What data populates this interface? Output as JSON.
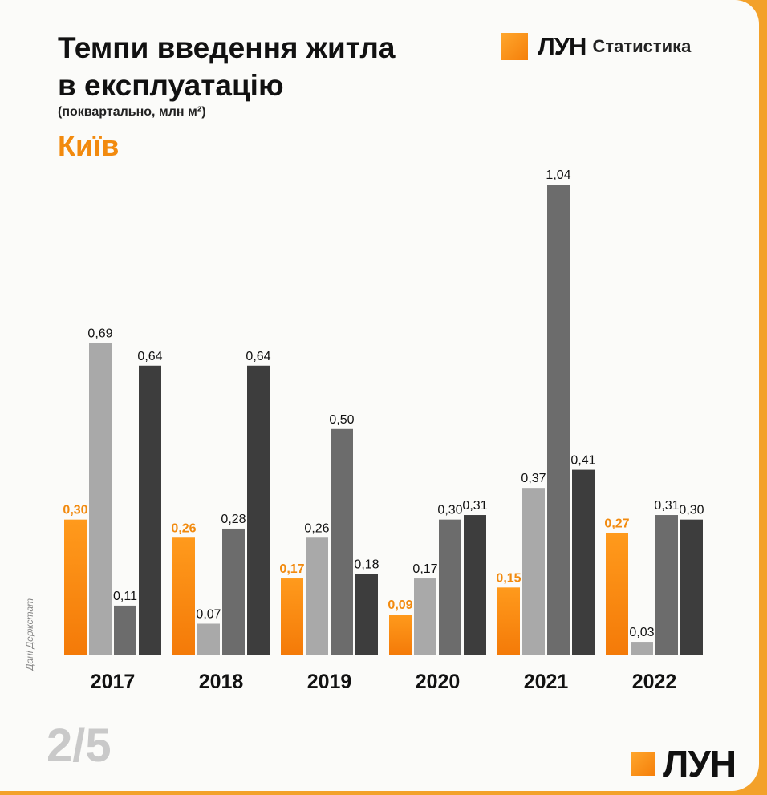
{
  "header": {
    "title_line1": "Темпи введення житла",
    "title_line2": "в експлуатацію",
    "subtitle": "(поквартально, млн м²)",
    "city": "Київ"
  },
  "brand": {
    "logo": "ЛУН",
    "product": "Статистика"
  },
  "source": "Дані Держстат",
  "pagination": "2/5",
  "footer_logo": "ЛУН",
  "colors": {
    "q1": "#f7870f",
    "q2": "#a9a9a9",
    "q3": "#6c6c6c",
    "q4": "#3d3d3d",
    "q1_label": "#f28a0e",
    "background": "#fbfbf9",
    "accent": "#f3a12a"
  },
  "chart_data": {
    "type": "bar",
    "categories": [
      "2017",
      "2018",
      "2019",
      "2020",
      "2021",
      "2022"
    ],
    "series": [
      {
        "values": [
          0.3,
          0.26,
          0.17,
          0.09,
          0.15,
          0.27
        ],
        "labels": [
          "0,30",
          "0,26",
          "0,17",
          "0,09",
          "0,15",
          "0,27"
        ]
      },
      {
        "values": [
          0.69,
          0.07,
          0.26,
          0.17,
          0.37,
          0.03
        ],
        "labels": [
          "0,69",
          "0,07",
          "0,26",
          "0,17",
          "0,37",
          "0,03"
        ]
      },
      {
        "values": [
          0.11,
          0.28,
          0.5,
          0.3,
          1.04,
          0.31
        ],
        "labels": [
          "0,11",
          "0,28",
          "0,50",
          "0,30",
          "1,04",
          "0,31"
        ]
      },
      {
        "values": [
          0.64,
          0.64,
          0.18,
          0.31,
          0.41,
          0.3
        ],
        "labels": [
          "0,64",
          "0,64",
          "0,18",
          "0,31",
          "0,41",
          "0,30"
        ]
      }
    ],
    "ylim": [
      0,
      1.04
    ],
    "grid": false,
    "legend": "none"
  }
}
